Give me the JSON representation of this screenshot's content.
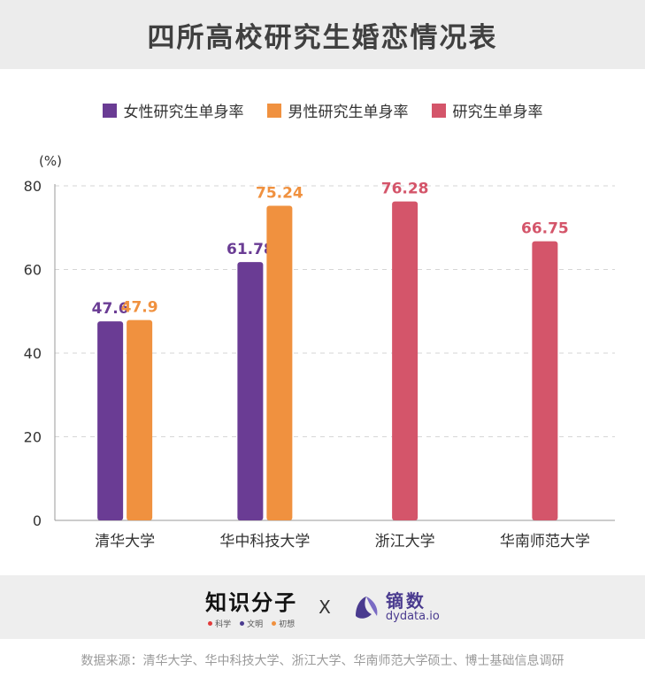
{
  "title": "四所高校研究生婚恋情况表",
  "legend": [
    {
      "label": "女性研究生单身率",
      "color": "#6a3c94"
    },
    {
      "label": "男性研究生单身率",
      "color": "#f0913f"
    },
    {
      "label": "研究生单身率",
      "color": "#d4556a"
    }
  ],
  "chart_data": {
    "type": "bar",
    "unit_label": "(%)",
    "ylim": [
      0,
      80
    ],
    "yticks": [
      0,
      20,
      40,
      60,
      80
    ],
    "grid": true,
    "legend_position": "top",
    "categories": [
      "清华大学",
      "华中科技大学",
      "浙江大学",
      "华南师范大学"
    ],
    "series": [
      {
        "name": "女性研究生单身率",
        "color": "#6a3c94",
        "values": [
          47.6,
          61.78,
          null,
          null
        ]
      },
      {
        "name": "男性研究生单身率",
        "color": "#f0913f",
        "values": [
          47.9,
          75.24,
          null,
          null
        ]
      },
      {
        "name": "研究生单身率",
        "color": "#d4556a",
        "values": [
          null,
          null,
          76.28,
          66.75
        ]
      }
    ]
  },
  "footer": {
    "brand_left": "知识分子",
    "brand_left_tags": [
      {
        "label": "科学",
        "color": "#e23b3b"
      },
      {
        "label": "文明",
        "color": "#4a3b8f"
      },
      {
        "label": "初想",
        "color": "#f0913f"
      }
    ],
    "cross": "X",
    "brand_right_cn": "镝数",
    "brand_right_en": "dydata.io"
  },
  "source": "数据来源：清华大学、华中科技大学、浙江大学、华南师范大学硕士、博士基础信息调研"
}
